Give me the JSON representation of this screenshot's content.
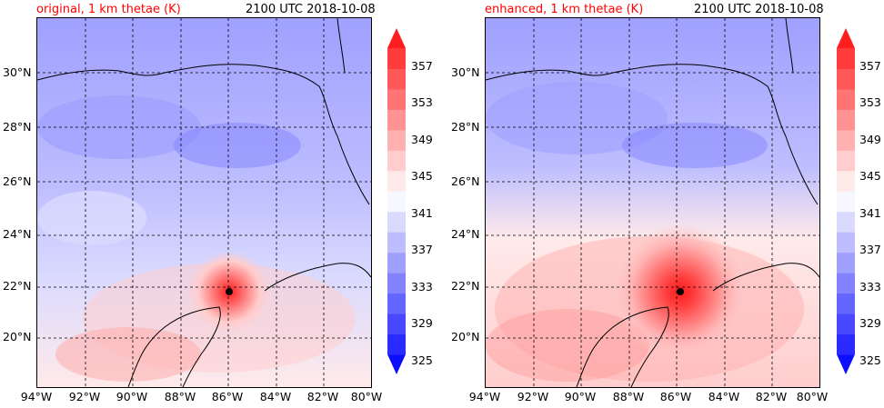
{
  "panels": [
    {
      "title": "original, 1 km thetae (K)",
      "time": "2100 UTC 2018-10-08",
      "storm_center": {
        "lon": -86.0,
        "lat": 21.7
      }
    },
    {
      "title": "enhanced, 1 km thetae (K)",
      "time": "2100 UTC 2018-10-08",
      "storm_center": {
        "lon": -85.8,
        "lat": 21.8
      }
    }
  ],
  "axes": {
    "lat_labels": [
      "30°N",
      "28°N",
      "26°N",
      "24°N",
      "22°N",
      "20°N"
    ],
    "lon_labels": [
      "94°W",
      "92°W",
      "90°W",
      "88°W",
      "86°W",
      "84°W",
      "82°W",
      "80°W"
    ],
    "lon_range": [
      -94,
      -80
    ],
    "lat_range": [
      18.2,
      32
    ]
  },
  "colorbar": {
    "labels": [
      "357",
      "353",
      "349",
      "345",
      "341",
      "337",
      "333",
      "329",
      "325"
    ],
    "min": 325,
    "max": 359,
    "interval": 2,
    "colors": [
      "#0e0eff",
      "#2b2bff",
      "#4848ff",
      "#6565ff",
      "#8383ff",
      "#a0a0ff",
      "#bdbdff",
      "#dadaff",
      "#f7f7ff",
      "#ffeaea",
      "#ffcdcd",
      "#ffb0b0",
      "#ff9393",
      "#ff7575",
      "#ff5858",
      "#ff3b3b",
      "#ff1e1e"
    ]
  }
}
